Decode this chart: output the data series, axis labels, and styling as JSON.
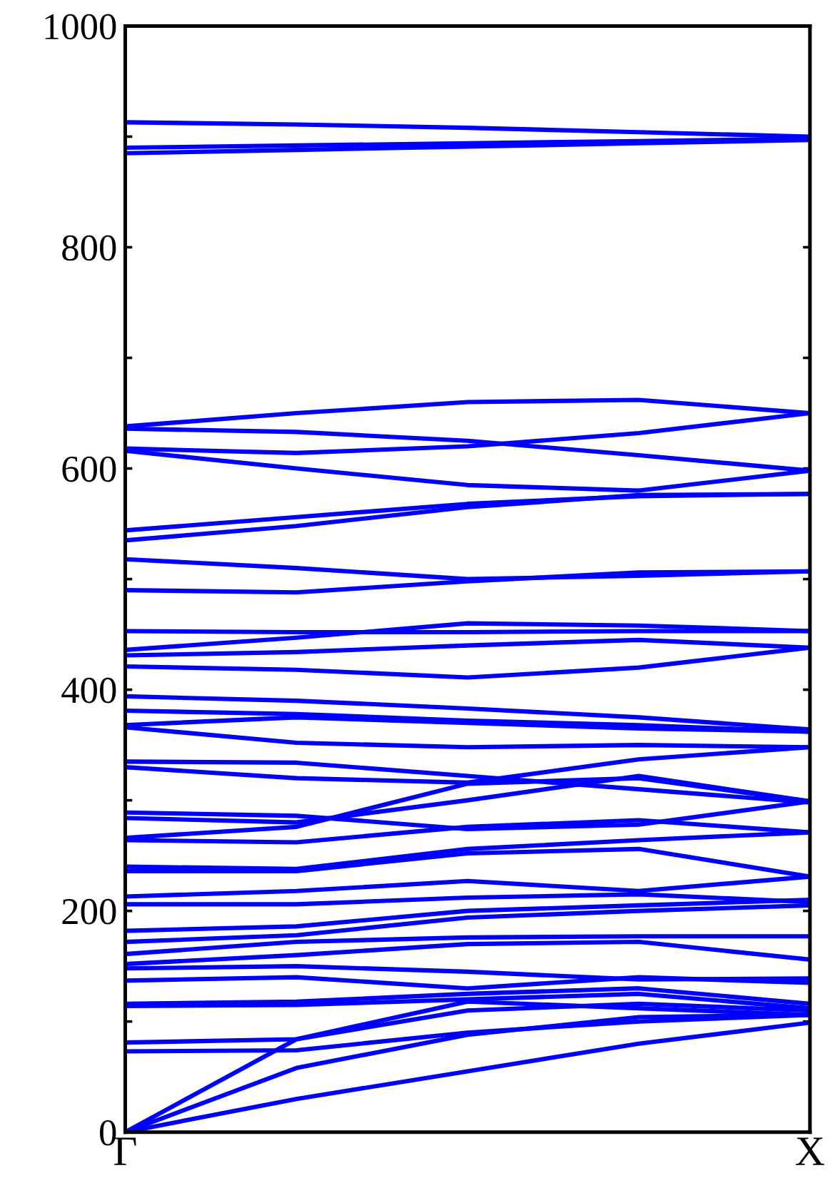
{
  "chart_data": {
    "type": "line",
    "categories": [
      "Γ",
      null,
      null,
      null,
      "X"
    ],
    "ylim": [
      0,
      1000
    ],
    "yticks": [
      0,
      {
        "value": 100,
        "label": null
      },
      200,
      {
        "value": 300,
        "label": null
      },
      400,
      {
        "value": 500,
        "label": null
      },
      600,
      {
        "value": 700,
        "label": null
      },
      800,
      {
        "value": 900,
        "label": null
      },
      1000
    ],
    "grid": false,
    "marker": "none",
    "line_style": "solid",
    "series": [
      {
        "color": "#0000ff",
        "values": [
          913,
          911,
          908,
          904,
          900
        ]
      },
      {
        "color": "#0000ff",
        "values": [
          890,
          892,
          894,
          896,
          898
        ]
      },
      {
        "color": "#0000ff",
        "values": [
          885,
          888,
          891,
          894,
          897
        ]
      },
      {
        "color": "#0000ff",
        "values": [
          638,
          650,
          660,
          662,
          650
        ]
      },
      {
        "color": "#0000ff",
        "values": [
          636,
          633,
          625,
          612,
          598
        ]
      },
      {
        "color": "#0000ff",
        "values": [
          618,
          614,
          620,
          632,
          650
        ]
      },
      {
        "color": "#0000ff",
        "values": [
          616,
          600,
          585,
          580,
          598
        ]
      },
      {
        "color": "#0000ff",
        "values": [
          544,
          556,
          568,
          575,
          577
        ]
      },
      {
        "color": "#0000ff",
        "values": [
          535,
          548,
          565,
          576,
          577
        ]
      },
      {
        "color": "#0000ff",
        "values": [
          518,
          510,
          500,
          503,
          507
        ]
      },
      {
        "color": "#0000ff",
        "values": [
          490,
          488,
          498,
          506,
          507
        ]
      },
      {
        "color": "#0000ff",
        "values": [
          453,
          452,
          452,
          453,
          453
        ]
      },
      {
        "color": "#0000ff",
        "values": [
          436,
          447,
          460,
          458,
          453
        ]
      },
      {
        "color": "#0000ff",
        "values": [
          431,
          434,
          440,
          445,
          438
        ]
      },
      {
        "color": "#0000ff",
        "values": [
          421,
          418,
          411,
          420,
          438
        ]
      },
      {
        "color": "#0000ff",
        "values": [
          394,
          390,
          383,
          375,
          364
        ]
      },
      {
        "color": "#0000ff",
        "values": [
          381,
          378,
          372,
          368,
          362
        ]
      },
      {
        "color": "#0000ff",
        "values": [
          368,
          375,
          370,
          365,
          362
        ]
      },
      {
        "color": "#0000ff",
        "values": [
          366,
          352,
          348,
          350,
          348
        ]
      },
      {
        "color": "#0000ff",
        "values": [
          335,
          334,
          322,
          310,
          298
        ]
      },
      {
        "color": "#0000ff",
        "values": [
          330,
          320,
          316,
          337,
          348
        ]
      },
      {
        "color": "#0000ff",
        "values": [
          289,
          286,
          274,
          278,
          299
        ]
      },
      {
        "color": "#0000ff",
        "values": [
          284,
          280,
          300,
          322,
          299
        ]
      },
      {
        "color": "#0000ff",
        "values": [
          266,
          276,
          315,
          320,
          299
        ]
      },
      {
        "color": "#0000ff",
        "values": [
          264,
          262,
          276,
          282,
          271
        ]
      },
      {
        "color": "#0000ff",
        "values": [
          240,
          238,
          256,
          264,
          271
        ]
      },
      {
        "color": "#0000ff",
        "values": [
          236,
          236,
          252,
          256,
          231
        ]
      },
      {
        "color": "#0000ff",
        "values": [
          213,
          218,
          227,
          218,
          231
        ]
      },
      {
        "color": "#0000ff",
        "values": [
          206,
          206,
          212,
          215,
          208
        ]
      },
      {
        "color": "#0000ff",
        "values": [
          182,
          186,
          200,
          205,
          210
        ]
      },
      {
        "color": "#0000ff",
        "values": [
          172,
          178,
          194,
          200,
          205
        ]
      },
      {
        "color": "#0000ff",
        "values": [
          161,
          172,
          176,
          177,
          177
        ]
      },
      {
        "color": "#0000ff",
        "values": [
          152,
          160,
          170,
          172,
          156
        ]
      },
      {
        "color": "#0000ff",
        "values": [
          148,
          150,
          145,
          138,
          139
        ]
      },
      {
        "color": "#0000ff",
        "values": [
          137,
          140,
          130,
          140,
          135
        ]
      },
      {
        "color": "#0000ff",
        "values": [
          116,
          118,
          125,
          130,
          116
        ]
      },
      {
        "color": "#0000ff",
        "values": [
          114,
          115,
          120,
          125,
          112
        ]
      },
      {
        "color": "#0000ff",
        "values": [
          81,
          84,
          118,
          112,
          106
        ]
      },
      {
        "color": "#0000ff",
        "values": [
          73,
          74,
          90,
          100,
          106
        ]
      },
      {
        "color": "#0000ff",
        "values": [
          0,
          84,
          110,
          116,
          110
        ]
      },
      {
        "color": "#0000ff",
        "values": [
          0,
          58,
          88,
          104,
          106
        ]
      },
      {
        "color": "#0000ff",
        "values": [
          0,
          30,
          55,
          80,
          99
        ]
      }
    ]
  }
}
